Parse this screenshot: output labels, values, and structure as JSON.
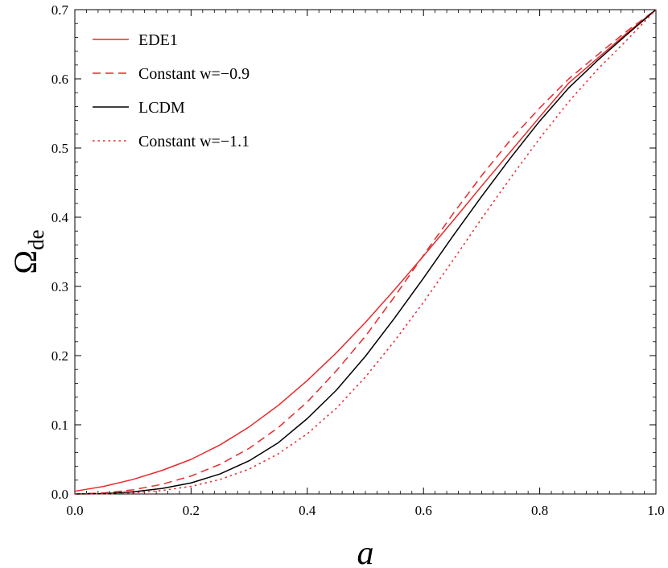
{
  "chart_data": {
    "type": "line",
    "xlabel": "a",
    "ylabel_main": "Ω",
    "ylabel_sub": "de",
    "xlim": [
      0.0,
      1.0
    ],
    "ylim": [
      0.0,
      0.7
    ],
    "x_ticks": [
      "0.0",
      "0.2",
      "0.4",
      "0.6",
      "0.8",
      "1.0"
    ],
    "y_ticks": [
      "0.0",
      "0.1",
      "0.2",
      "0.3",
      "0.4",
      "0.5",
      "0.6",
      "0.7"
    ],
    "grid": false,
    "legend_position": "top-left",
    "x": [
      0.0,
      0.05,
      0.1,
      0.15,
      0.2,
      0.25,
      0.3,
      0.35,
      0.4,
      0.45,
      0.5,
      0.55,
      0.6,
      0.65,
      0.7,
      0.75,
      0.8,
      0.85,
      0.9,
      0.95,
      1.0
    ],
    "series": [
      {
        "name": "EDE1",
        "color": "#e8292b",
        "dash": "solid",
        "values": [
          0.004,
          0.011,
          0.021,
          0.034,
          0.05,
          0.071,
          0.097,
          0.128,
          0.164,
          0.204,
          0.248,
          0.295,
          0.344,
          0.394,
          0.445,
          0.495,
          0.545,
          0.594,
          0.63,
          0.666,
          0.7
        ]
      },
      {
        "name": "Constant w=−0.9",
        "color": "#e8292b",
        "dash": "dashed",
        "values": [
          0.0,
          0.0015,
          0.006,
          0.014,
          0.026,
          0.043,
          0.066,
          0.096,
          0.133,
          0.178,
          0.228,
          0.285,
          0.345,
          0.404,
          0.46,
          0.512,
          0.558,
          0.6,
          0.635,
          0.669,
          0.7
        ]
      },
      {
        "name": "LCDM",
        "color": "#000000",
        "dash": "solid",
        "values": [
          0.0,
          0.0005,
          0.003,
          0.008,
          0.016,
          0.029,
          0.048,
          0.074,
          0.109,
          0.15,
          0.199,
          0.254,
          0.312,
          0.372,
          0.43,
          0.486,
          0.539,
          0.587,
          0.627,
          0.664,
          0.7
        ]
      },
      {
        "name": "Constant w=−1.1",
        "color": "#e8292b",
        "dash": "dotted",
        "values": [
          0.0,
          0.0002,
          0.0015,
          0.005,
          0.011,
          0.021,
          0.036,
          0.058,
          0.087,
          0.124,
          0.169,
          0.221,
          0.277,
          0.337,
          0.398,
          0.457,
          0.514,
          0.567,
          0.614,
          0.656,
          0.7
        ]
      }
    ]
  }
}
